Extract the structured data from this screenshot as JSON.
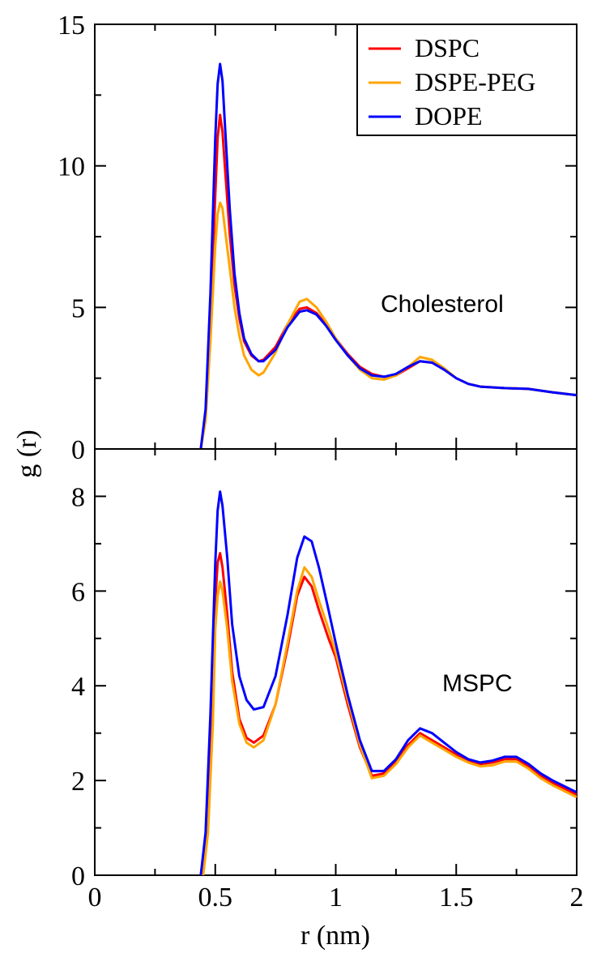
{
  "chart_data": [
    {
      "type": "line",
      "panel": "top",
      "annotation": "Cholesterol",
      "ylim": [
        0,
        15
      ],
      "yticks": [
        0,
        5,
        10,
        15
      ],
      "ytick_labels": [
        "0",
        "5",
        "10",
        "15"
      ],
      "xlim": [
        0,
        2
      ],
      "legend": {
        "placement": "top-right",
        "entries": [
          {
            "name": "DSPC",
            "color": "#ff0000"
          },
          {
            "name": "DSPE-PEG",
            "color": "#ffa500"
          },
          {
            "name": "DOPE",
            "color": "#0000ff"
          }
        ]
      },
      "series": [
        {
          "name": "DSPC",
          "color": "#ff0000",
          "x": [
            0.44,
            0.46,
            0.48,
            0.5,
            0.51,
            0.52,
            0.53,
            0.54,
            0.56,
            0.58,
            0.6,
            0.62,
            0.65,
            0.68,
            0.7,
            0.75,
            0.8,
            0.85,
            0.88,
            0.92,
            0.96,
            1.0,
            1.05,
            1.1,
            1.15,
            1.2,
            1.25,
            1.3,
            1.35,
            1.4,
            1.45,
            1.5,
            1.55,
            1.6,
            1.7,
            1.8,
            1.9,
            2.0
          ],
          "y": [
            0,
            1.2,
            4.5,
            9.0,
            11.0,
            11.8,
            11.2,
            10.0,
            7.6,
            5.8,
            4.6,
            3.8,
            3.3,
            3.1,
            3.15,
            3.6,
            4.4,
            4.95,
            5.0,
            4.8,
            4.4,
            3.9,
            3.35,
            2.9,
            2.65,
            2.55,
            2.6,
            2.85,
            3.1,
            3.05,
            2.8,
            2.5,
            2.3,
            2.2,
            2.15,
            2.12,
            2.0,
            1.9
          ]
        },
        {
          "name": "DSPE-PEG",
          "color": "#ffa500",
          "x": [
            0.44,
            0.46,
            0.48,
            0.5,
            0.51,
            0.52,
            0.53,
            0.54,
            0.56,
            0.58,
            0.6,
            0.62,
            0.65,
            0.68,
            0.7,
            0.75,
            0.8,
            0.85,
            0.88,
            0.92,
            0.96,
            1.0,
            1.05,
            1.1,
            1.15,
            1.2,
            1.25,
            1.3,
            1.35,
            1.4,
            1.45,
            1.5,
            1.55,
            1.6,
            1.7,
            1.8,
            1.9,
            2.0
          ],
          "y": [
            0,
            1.0,
            3.8,
            7.2,
            8.3,
            8.7,
            8.5,
            7.8,
            6.4,
            5.0,
            4.0,
            3.3,
            2.8,
            2.6,
            2.7,
            3.4,
            4.4,
            5.2,
            5.3,
            5.0,
            4.5,
            3.9,
            3.3,
            2.8,
            2.5,
            2.45,
            2.6,
            2.9,
            3.25,
            3.15,
            2.85,
            2.5,
            2.3,
            2.2,
            2.15,
            2.12,
            2.0,
            1.9
          ]
        },
        {
          "name": "DOPE",
          "color": "#0000ff",
          "x": [
            0.44,
            0.46,
            0.48,
            0.5,
            0.51,
            0.52,
            0.53,
            0.54,
            0.56,
            0.58,
            0.6,
            0.62,
            0.65,
            0.68,
            0.7,
            0.75,
            0.8,
            0.85,
            0.88,
            0.92,
            0.96,
            1.0,
            1.05,
            1.1,
            1.15,
            1.2,
            1.25,
            1.3,
            1.35,
            1.4,
            1.45,
            1.5,
            1.55,
            1.6,
            1.7,
            1.8,
            1.9,
            2.0
          ],
          "y": [
            0,
            1.4,
            5.5,
            11.0,
            12.9,
            13.6,
            13.0,
            11.5,
            8.5,
            6.2,
            4.8,
            3.9,
            3.35,
            3.1,
            3.1,
            3.5,
            4.3,
            4.85,
            4.9,
            4.75,
            4.35,
            3.85,
            3.3,
            2.85,
            2.6,
            2.55,
            2.65,
            2.9,
            3.1,
            3.05,
            2.8,
            2.5,
            2.3,
            2.2,
            2.15,
            2.12,
            2.0,
            1.9
          ]
        }
      ]
    },
    {
      "type": "line",
      "panel": "bottom",
      "annotation": "MSPC",
      "ylim": [
        0,
        9
      ],
      "yticks": [
        0,
        2,
        4,
        6,
        8
      ],
      "ytick_labels": [
        "0",
        "2",
        "4",
        "6",
        "8"
      ],
      "xlim": [
        0,
        2
      ],
      "xticks": [
        0,
        0.5,
        1,
        1.5,
        2
      ],
      "xtick_labels": [
        "0",
        "0.5",
        "1",
        "1.5",
        "2"
      ],
      "xlabel": "r (nm)",
      "series": [
        {
          "name": "DSPC",
          "color": "#ff0000",
          "x": [
            0.44,
            0.46,
            0.48,
            0.5,
            0.51,
            0.52,
            0.53,
            0.55,
            0.57,
            0.6,
            0.63,
            0.66,
            0.7,
            0.75,
            0.8,
            0.84,
            0.87,
            0.9,
            0.93,
            0.97,
            1.0,
            1.05,
            1.1,
            1.15,
            1.2,
            1.25,
            1.3,
            1.35,
            1.4,
            1.45,
            1.5,
            1.55,
            1.6,
            1.65,
            1.7,
            1.75,
            1.8,
            1.85,
            1.9,
            2.0
          ],
          "y": [
            0,
            0.8,
            3.0,
            5.8,
            6.6,
            6.8,
            6.5,
            5.5,
            4.3,
            3.3,
            2.9,
            2.8,
            2.95,
            3.6,
            4.8,
            5.9,
            6.3,
            6.1,
            5.6,
            5.0,
            4.6,
            3.6,
            2.7,
            2.1,
            2.15,
            2.4,
            2.75,
            3.0,
            2.85,
            2.7,
            2.55,
            2.4,
            2.35,
            2.38,
            2.45,
            2.45,
            2.3,
            2.1,
            1.95,
            1.7
          ]
        },
        {
          "name": "DSPE-PEG",
          "color": "#ffa500",
          "x": [
            0.45,
            0.47,
            0.49,
            0.5,
            0.51,
            0.52,
            0.53,
            0.55,
            0.57,
            0.6,
            0.63,
            0.66,
            0.7,
            0.75,
            0.8,
            0.84,
            0.87,
            0.9,
            0.93,
            0.97,
            1.0,
            1.05,
            1.1,
            1.15,
            1.2,
            1.25,
            1.3,
            1.35,
            1.4,
            1.45,
            1.5,
            1.55,
            1.6,
            1.65,
            1.7,
            1.75,
            1.8,
            1.85,
            1.9,
            2.0
          ],
          "y": [
            0,
            0.9,
            3.2,
            5.2,
            5.9,
            6.2,
            6.0,
            5.2,
            4.1,
            3.2,
            2.8,
            2.7,
            2.85,
            3.6,
            4.9,
            6.0,
            6.5,
            6.3,
            5.8,
            5.2,
            4.7,
            3.7,
            2.75,
            2.05,
            2.1,
            2.35,
            2.7,
            2.95,
            2.8,
            2.65,
            2.5,
            2.38,
            2.3,
            2.32,
            2.4,
            2.4,
            2.25,
            2.05,
            1.9,
            1.65
          ]
        },
        {
          "name": "DOPE",
          "color": "#0000ff",
          "x": [
            0.44,
            0.46,
            0.48,
            0.5,
            0.51,
            0.52,
            0.53,
            0.55,
            0.57,
            0.6,
            0.63,
            0.66,
            0.7,
            0.75,
            0.8,
            0.84,
            0.87,
            0.9,
            0.93,
            0.97,
            1.0,
            1.05,
            1.1,
            1.15,
            1.2,
            1.25,
            1.3,
            1.35,
            1.4,
            1.45,
            1.5,
            1.55,
            1.6,
            1.65,
            1.7,
            1.75,
            1.8,
            1.85,
            1.9,
            2.0
          ],
          "y": [
            0,
            0.9,
            3.4,
            6.6,
            7.7,
            8.1,
            7.8,
            6.7,
            5.3,
            4.2,
            3.7,
            3.5,
            3.55,
            4.2,
            5.5,
            6.7,
            7.15,
            7.05,
            6.5,
            5.6,
            4.9,
            3.8,
            2.85,
            2.2,
            2.2,
            2.45,
            2.85,
            3.1,
            3.0,
            2.8,
            2.6,
            2.45,
            2.38,
            2.42,
            2.5,
            2.5,
            2.35,
            2.15,
            2.0,
            1.75
          ]
        }
      ]
    }
  ],
  "shared_ylabel": "g (r)"
}
